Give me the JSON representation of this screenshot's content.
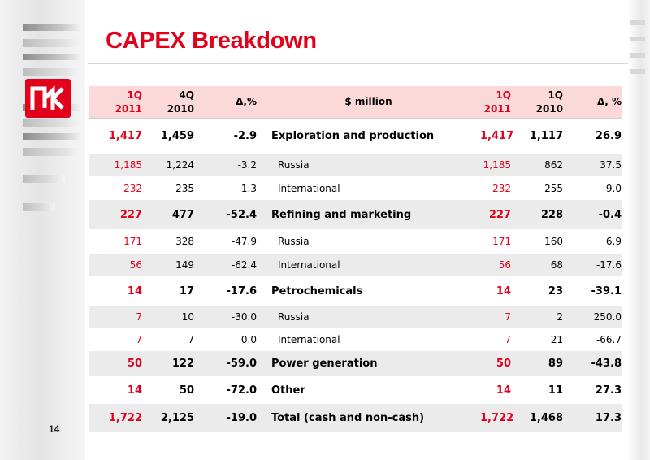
{
  "title": "CAPEX Breakdown",
  "page_number": "14",
  "logo_text": "LUKOIL",
  "colors": {
    "brand_red": "#e2001a",
    "header_bg": "#fbd9d9",
    "row_shade": "#ebebeb"
  },
  "header": {
    "col1": [
      "1Q",
      "2011"
    ],
    "col2": [
      "4Q",
      "2010"
    ],
    "col3": "Δ,%",
    "col4": "$ million",
    "col5": [
      "1Q",
      "2011"
    ],
    "col6": [
      "1Q",
      "2010"
    ],
    "col7": "Δ, %"
  },
  "rows": [
    {
      "c1": "1,417",
      "c2": "1,459",
      "c3": "-2.9",
      "label": "Exploration and production",
      "c5": "1,417",
      "c6": "1,117",
      "c7": "26.9"
    },
    {
      "c1": "1,185",
      "c2": "1,224",
      "c3": "-3.2",
      "label": "Russia",
      "c5": "1,185",
      "c6": "862",
      "c7": "37.5"
    },
    {
      "c1": "232",
      "c2": "235",
      "c3": "-1.3",
      "label": "International",
      "c5": "232",
      "c6": "255",
      "c7": "-9.0"
    },
    {
      "c1": "227",
      "c2": "477",
      "c3": "-52.4",
      "label": "Refining and marketing",
      "c5": "227",
      "c6": "228",
      "c7": "-0.4"
    },
    {
      "c1": "171",
      "c2": "328",
      "c3": "-47.9",
      "label": "Russia",
      "c5": "171",
      "c6": "160",
      "c7": "6.9"
    },
    {
      "c1": "56",
      "c2": "149",
      "c3": "-62.4",
      "label": "International",
      "c5": "56",
      "c6": "68",
      "c7": "-17.6"
    },
    {
      "c1": "14",
      "c2": "17",
      "c3": "-17.6",
      "label": "Petrochemicals",
      "c5": "14",
      "c6": "23",
      "c7": "-39.1"
    },
    {
      "c1": "7",
      "c2": "10",
      "c3": "-30.0",
      "label": "Russia",
      "c5": "7",
      "c6": "2",
      "c7": "250.0"
    },
    {
      "c1": "7",
      "c2": "7",
      "c3": "0.0",
      "label": "International",
      "c5": "7",
      "c6": "21",
      "c7": "-66.7"
    },
    {
      "c1": "50",
      "c2": "122",
      "c3": "-59.0",
      "label": "Power generation",
      "c5": "50",
      "c6": "89",
      "c7": "-43.8"
    },
    {
      "c1": "14",
      "c2": "50",
      "c3": "-72.0",
      "label": "Other",
      "c5": "14",
      "c6": "11",
      "c7": "27.3"
    },
    {
      "c1": "1,722",
      "c2": "2,125",
      "c3": "-19.0",
      "label": "Total (cash and non-cash)",
      "c5": "1,722",
      "c6": "1,468",
      "c7": "17.3"
    }
  ]
}
